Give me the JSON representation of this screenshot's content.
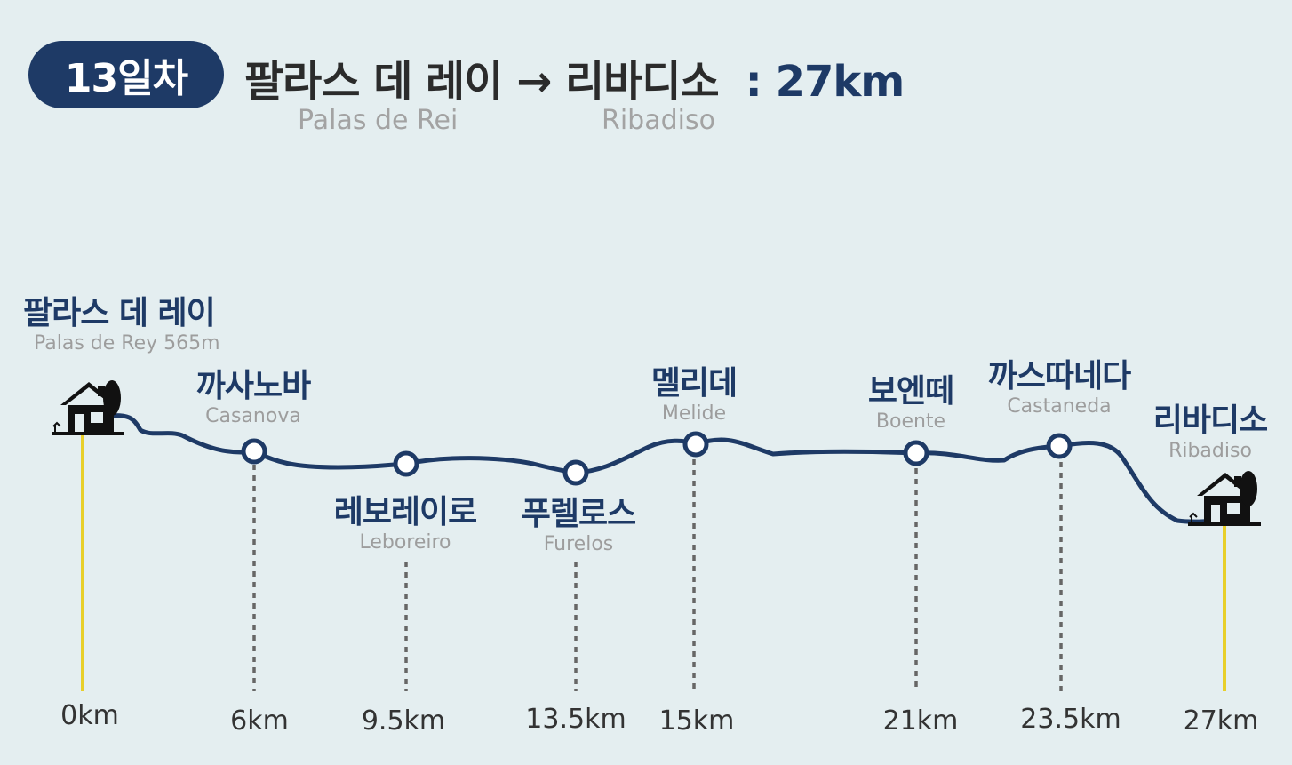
{
  "header": {
    "day_badge": "13일차",
    "route_title": "팔라스 데 레이 → 리바디소",
    "distance": ": 27km",
    "from_en": "Palas de Rei",
    "to_en": "Ribadiso"
  },
  "stops": [
    {
      "name_ko": "팔라스 데 레이",
      "name_en": "Palas de Rey 565m",
      "km_label": "0km",
      "type": "start",
      "km": 0
    },
    {
      "name_ko": "까사노바",
      "name_en": "Casanova",
      "km_label": "6km",
      "type": "waypoint",
      "km": 6
    },
    {
      "name_ko": "레보레이로",
      "name_en": "Leboreiro",
      "km_label": "9.5km",
      "type": "waypoint",
      "km": 9.5
    },
    {
      "name_ko": "푸렐로스",
      "name_en": "Furelos",
      "km_label": "13.5km",
      "type": "waypoint",
      "km": 13.5
    },
    {
      "name_ko": "멜리데",
      "name_en": "Melide",
      "km_label": "15km",
      "type": "waypoint",
      "km": 15
    },
    {
      "name_ko": "보엔떼",
      "name_en": "Boente",
      "km_label": "21km",
      "type": "waypoint",
      "km": 21
    },
    {
      "name_ko": "까스따네다",
      "name_en": "Castaneda",
      "km_label": "23.5km",
      "type": "waypoint",
      "km": 23.5
    },
    {
      "name_ko": "리바디소",
      "name_en": "Ribadiso",
      "km_label": "27km",
      "type": "end",
      "km": 27
    }
  ],
  "icons": {
    "start": "house-tree-icon",
    "end": "house-tree-icon",
    "waypoint": "circle-marker-icon"
  },
  "colors": {
    "route": "#1e3a66",
    "endpoint_line": "#e8cf2a",
    "waypoint_line": "#666666",
    "badge": "#1e3a66",
    "background": "#e4eef0"
  }
}
